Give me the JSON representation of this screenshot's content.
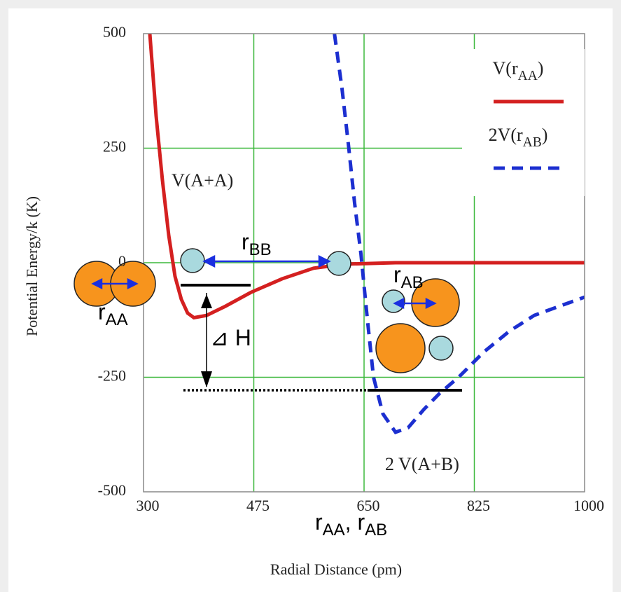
{
  "chart_data": {
    "type": "line",
    "xlabel": "Radial Distance (pm)",
    "ylabel": "Potential Energy/k (K)",
    "xlim": [
      300,
      1000
    ],
    "ylim": [
      -500,
      500
    ],
    "xticks": [
      300,
      475,
      650,
      825,
      1000
    ],
    "yticks": [
      500,
      250,
      0,
      -250,
      -500
    ],
    "grid": true,
    "legend": "upper right",
    "series": [
      {
        "name": "V(rAA)",
        "color": "#d42020",
        "style": "solid",
        "x": [
          310,
          320,
          330,
          340,
          350,
          360,
          370,
          380,
          400,
          430,
          470,
          520,
          570,
          620,
          700,
          800,
          1000
        ],
        "values": [
          500,
          320,
          180,
          60,
          -30,
          -80,
          -110,
          -120,
          -115,
          -95,
          -65,
          -35,
          -12,
          -3,
          0,
          0,
          0
        ]
      },
      {
        "name": "2V(rAB)",
        "color": "#1c2fd0",
        "style": "dashed",
        "x": [
          603,
          615,
          625,
          635,
          645,
          655,
          665,
          680,
          700,
          720,
          745,
          770,
          800,
          840,
          880,
          920,
          960,
          1000
        ],
        "values": [
          500,
          380,
          260,
          130,
          20,
          -120,
          -250,
          -330,
          -370,
          -360,
          -320,
          -285,
          -250,
          -195,
          -150,
          -115,
          -95,
          -75
        ]
      }
    ],
    "annotations": [
      "V(A+A)",
      "2 V(A+B)",
      "rBB",
      "rAB",
      "rAA",
      "⊿ H",
      "rAA, rAB"
    ]
  }
}
